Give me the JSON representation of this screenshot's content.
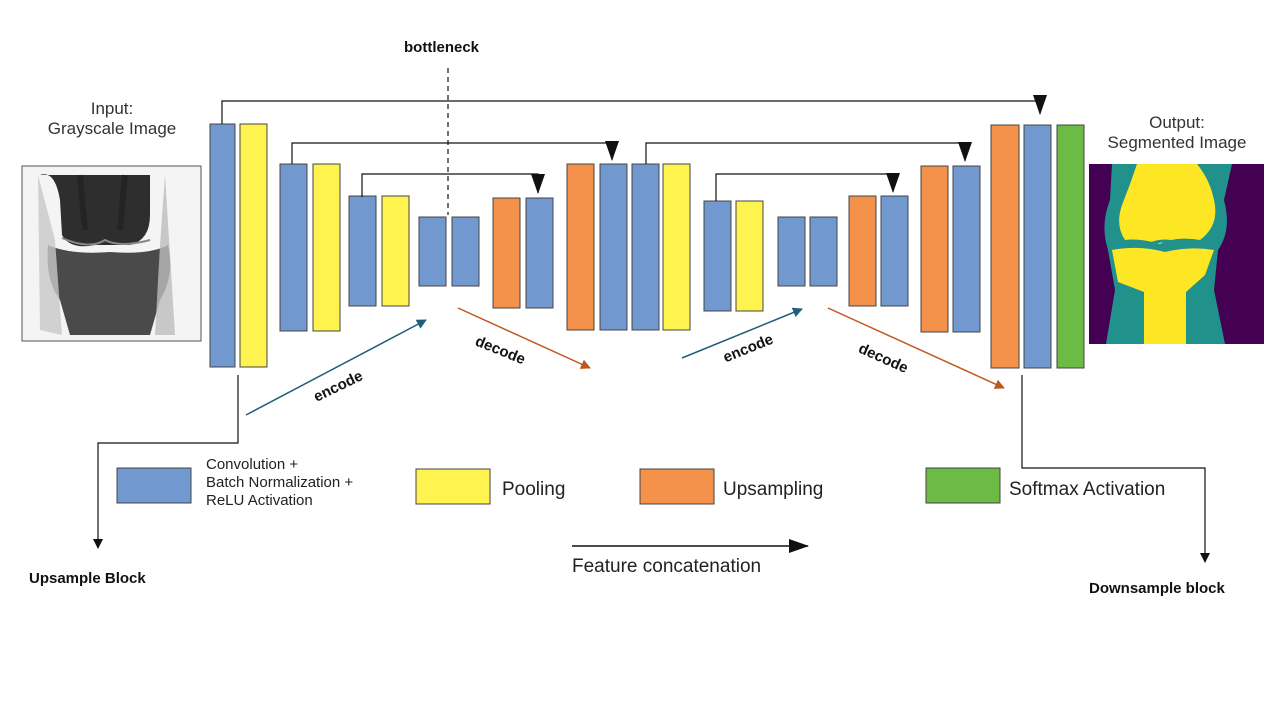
{
  "title": "",
  "labels": {
    "bottleneck": "bottleneck",
    "input_line1": "Input:",
    "input_line2": "Grayscale Image",
    "output_line1": "Output:",
    "output_line2": "Segmented Image",
    "encode": "encode",
    "decode": "decode",
    "upsample_block": "Upsample Block",
    "downsample_block": "Downsample block",
    "feature_concatenation": "Feature concatenation"
  },
  "legend": {
    "conv_line1": "Convolution +",
    "conv_line2": "Batch Normalization +",
    "conv_line3": "ReLU Activation",
    "pooling": "Pooling",
    "upsampling": "Upsampling",
    "softmax": "Softmax Activation"
  },
  "colors": {
    "conv": "#7199d0",
    "pooling": "#fff44f",
    "upsampling": "#f4914a",
    "softmax": "#6cbb45",
    "encode_arrow": "#1f5f7a",
    "decode_arrow": "#c0561f",
    "block_border": "#444444",
    "seg_background": "#440154",
    "seg_cartilage": "#21918c",
    "seg_bone": "#fde725"
  }
}
